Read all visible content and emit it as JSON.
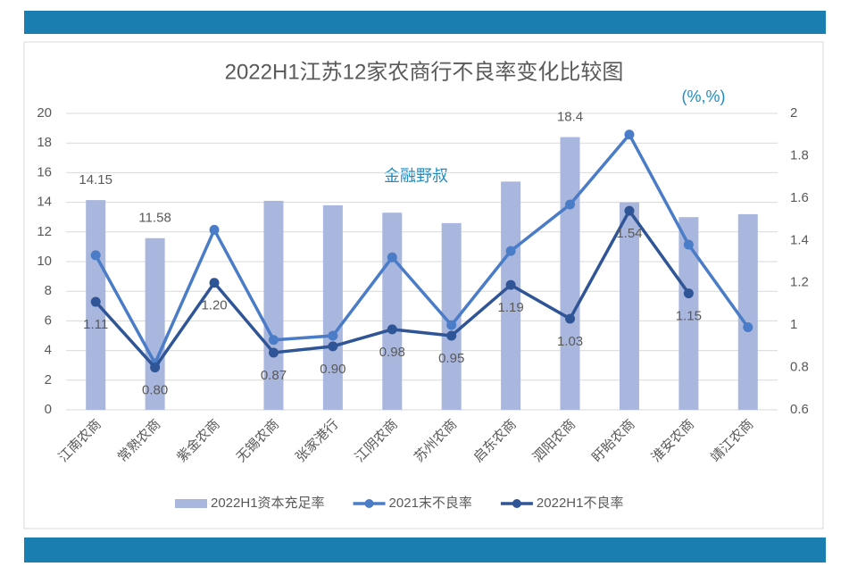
{
  "chart_data": {
    "type": "bar_line",
    "title": "2022H1江苏12家农商行不良率变化比较图",
    "annotations": [
      "(%,%)",
      "金融野叔"
    ],
    "categories": [
      "江南农商",
      "常熟农商",
      "紫金农商",
      "无锡农商",
      "张家港行",
      "江阴农商",
      "苏州农商",
      "启东农商",
      "泗阳农商",
      "盱眙农商",
      "淮安农商",
      "靖江农商"
    ],
    "series": [
      {
        "name": "2022H1资本充足率",
        "kind": "bar",
        "color": "#a9b6dd",
        "axis": "y",
        "values": [
          14.15,
          11.58,
          null,
          14.1,
          13.8,
          13.3,
          12.6,
          15.4,
          18.4,
          14.0,
          13.0,
          13.2
        ],
        "value_labels": [
          "14.15",
          "11.58",
          null,
          null,
          null,
          null,
          null,
          null,
          "18.4",
          null,
          null,
          null
        ]
      },
      {
        "name": "2021末不良率",
        "kind": "line",
        "color": "#4a7cc7",
        "axis": "y2",
        "values": [
          1.33,
          0.82,
          1.45,
          0.93,
          0.95,
          1.32,
          1.0,
          1.35,
          1.57,
          1.9,
          1.38,
          0.99
        ]
      },
      {
        "name": "2022H1不良率",
        "kind": "line",
        "color": "#2f5597",
        "axis": "y2",
        "values": [
          1.11,
          0.8,
          1.2,
          0.87,
          0.9,
          0.98,
          0.95,
          1.19,
          1.03,
          1.54,
          1.15,
          null
        ],
        "value_labels": [
          "1.11",
          "0.80",
          "1.20",
          "0.87",
          "0.90",
          "0.98",
          "0.95",
          "1.19",
          "1.03",
          "1.54",
          "1.15",
          null
        ]
      }
    ],
    "ylim": [
      0,
      20
    ],
    "yticks": [
      0,
      2,
      4,
      6,
      8,
      10,
      12,
      14,
      16,
      18,
      20
    ],
    "y2lim": [
      0.6,
      2
    ],
    "y2ticks": [
      0.6,
      0.8,
      1,
      1.2,
      1.4,
      1.6,
      1.8,
      2
    ],
    "grid": true,
    "legend": "bottom"
  }
}
